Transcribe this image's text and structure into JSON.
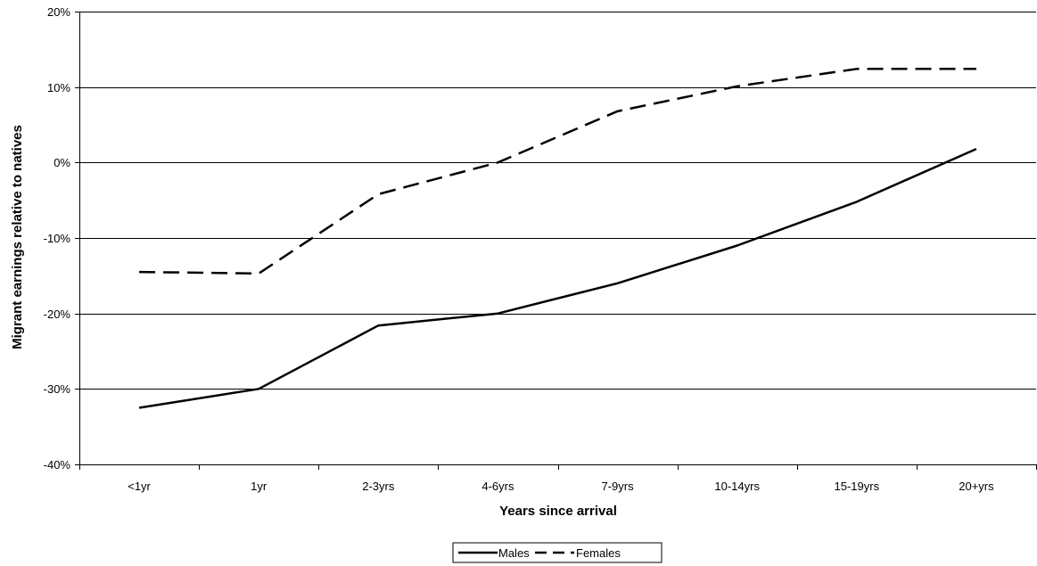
{
  "chart_data": {
    "type": "line",
    "title": "",
    "xlabel": "Years since arrival",
    "ylabel": "Migrant earnings relative to natives",
    "categories": [
      "<1yr",
      "1yr",
      "2-3yrs",
      "4-6yrs",
      "7-9yrs",
      "10-14yrs",
      "15-19yrs",
      "20+yrs"
    ],
    "ylim": [
      -40,
      20
    ],
    "yticks": [
      20,
      10,
      0,
      -10,
      -20,
      -30,
      -40
    ],
    "ytick_labels": [
      "20%",
      "10%",
      "0%",
      "-10%",
      "-20%",
      "-30%",
      "-40%"
    ],
    "grid": true,
    "legend_position": "bottom-center",
    "series": [
      {
        "name": "Males",
        "style": "solid",
        "color": "#000000",
        "values": [
          -32.5,
          -30,
          -21.6,
          -20,
          -16,
          -11,
          -5.2,
          1.8
        ]
      },
      {
        "name": "Females",
        "style": "dashed",
        "color": "#000000",
        "values": [
          -14.5,
          -14.7,
          -4.2,
          0,
          6.8,
          10.1,
          12.4,
          12.4
        ]
      }
    ]
  }
}
